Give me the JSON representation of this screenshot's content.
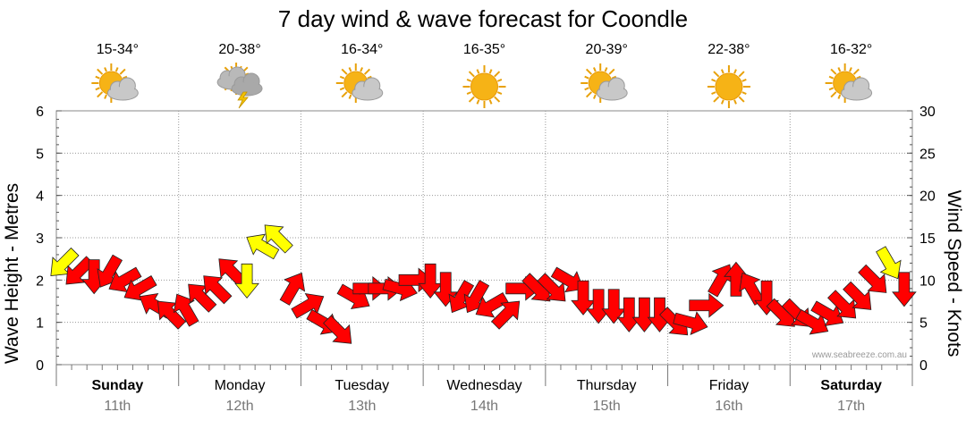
{
  "colors": {
    "wind_strong": "#ff0000",
    "wind_light": "#ffff00",
    "grid": "#999999",
    "axis_text": "#000000",
    "date_text": "#777777",
    "watermark": "#999999"
  },
  "chart_data": {
    "type": "line",
    "title": "7 day wind & wave forecast for Coondle",
    "ylabel": "Wave Height - Metres",
    "y2label": "Wind Speed - Knots",
    "ylim": [
      0,
      6
    ],
    "y2lim": [
      0,
      30
    ],
    "yticks": [
      "0",
      "1",
      "2",
      "3",
      "4",
      "5",
      "6"
    ],
    "y2ticks": [
      "0",
      "5",
      "10",
      "15",
      "20",
      "25",
      "30"
    ],
    "grid": true,
    "watermark": "www.seabreeze.com.au",
    "days": [
      {
        "day": "Sunday",
        "date": "11th",
        "temp": "15-34°",
        "icon": "partly-cloudy-icon",
        "bold": true
      },
      {
        "day": "Monday",
        "date": "12th",
        "temp": "20-38°",
        "icon": "thunderstorm-icon",
        "bold": false
      },
      {
        "day": "Tuesday",
        "date": "13th",
        "temp": "16-34°",
        "icon": "partly-cloudy-icon",
        "bold": false
      },
      {
        "day": "Wednesday",
        "date": "14th",
        "temp": "16-35°",
        "icon": "sun-icon",
        "bold": false
      },
      {
        "day": "Thursday",
        "date": "15th",
        "temp": "20-39°",
        "icon": "partly-cloudy-icon",
        "bold": false
      },
      {
        "day": "Friday",
        "date": "16th",
        "temp": "22-38°",
        "icon": "sun-icon",
        "bold": false
      },
      {
        "day": "Saturday",
        "date": "17th",
        "temp": "16-32°",
        "icon": "partly-cloudy-icon",
        "bold": true
      }
    ],
    "series": [
      {
        "x_hours": [
          0,
          3,
          6,
          9,
          12,
          15,
          18,
          21,
          24,
          27,
          30,
          33,
          36,
          39,
          42,
          45,
          48,
          51,
          54,
          57,
          60,
          63,
          66,
          69,
          72,
          75,
          78,
          81,
          84,
          87,
          90,
          93,
          96,
          99,
          102,
          105,
          108,
          111,
          114,
          117,
          120,
          123,
          126,
          129,
          132,
          135,
          138,
          141,
          144,
          147,
          150,
          153,
          156,
          159,
          162,
          165
        ],
        "wind_knots": [
          12,
          11,
          10.5,
          11,
          10,
          9,
          7,
          6,
          6.5,
          8,
          9,
          11,
          10,
          14,
          15,
          9,
          7,
          5,
          4,
          8,
          9,
          9,
          9,
          10,
          10,
          9,
          8,
          8,
          7,
          6,
          9,
          9,
          9,
          10,
          8,
          7,
          7,
          6,
          6,
          6,
          5,
          5,
          7,
          10,
          10,
          9,
          8,
          6,
          6,
          5,
          6,
          7,
          8,
          10,
          12,
          9
        ],
        "wind_dir_deg": [
          135,
          135,
          90,
          120,
          150,
          150,
          210,
          225,
          240,
          225,
          225,
          225,
          90,
          210,
          225,
          300,
          330,
          30,
          45,
          30,
          0,
          0,
          15,
          0,
          90,
          90,
          120,
          120,
          150,
          315,
          0,
          45,
          45,
          30,
          90,
          90,
          90,
          90,
          90,
          90,
          45,
          15,
          0,
          300,
          270,
          240,
          90,
          45,
          45,
          30,
          30,
          45,
          45,
          45,
          60,
          90
        ]
      }
    ]
  }
}
